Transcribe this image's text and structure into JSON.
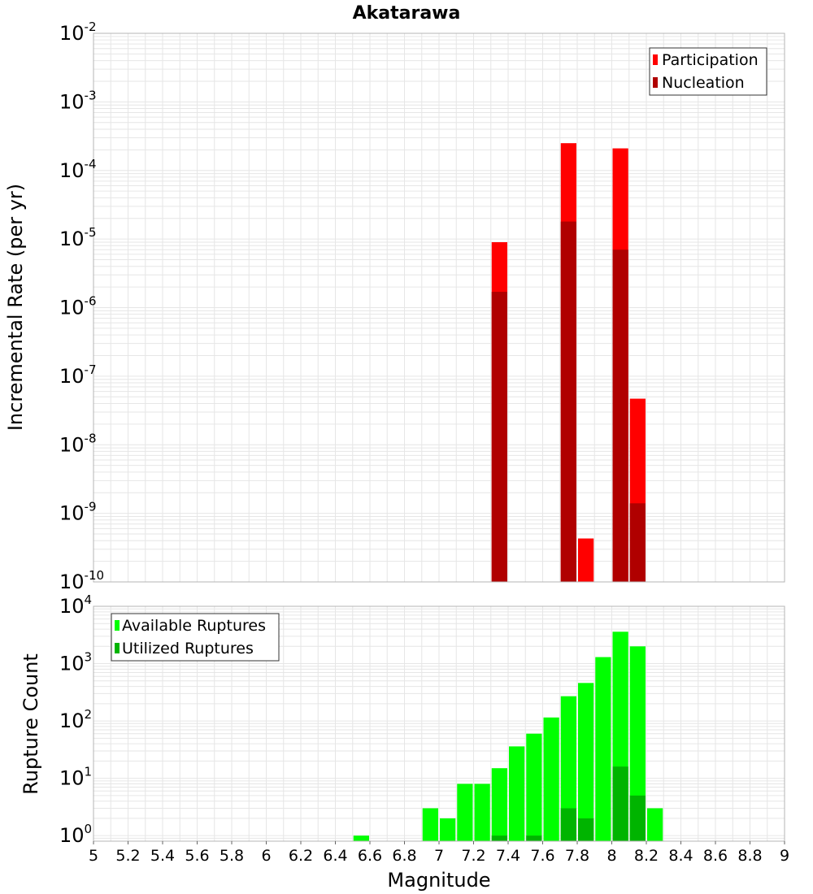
{
  "title": "Akatarawa",
  "colors": {
    "participation": "#ff0000",
    "nucleation": "#b00000",
    "available": "#00ff00",
    "utilized": "#00b400",
    "grid": "#e6e6e6",
    "frame": "#b4b4b4"
  },
  "chart_data": [
    {
      "type": "bar",
      "title": "Akatarawa",
      "xlabel": "Magnitude",
      "ylabel": "Incremental Rate (per yr)",
      "yscale": "log",
      "ylim": [
        1e-10,
        0.01
      ],
      "xlim": [
        5,
        9
      ],
      "bin_width": 0.1,
      "grid": true,
      "legend_position": "top-right",
      "series": [
        {
          "name": "Participation",
          "color": "#ff0000",
          "points": [
            {
              "x": 7.35,
              "y": 9e-06
            },
            {
              "x": 7.75,
              "y": 0.00025
            },
            {
              "x": 7.85,
              "y": 4.3e-10
            },
            {
              "x": 8.05,
              "y": 0.00021
            },
            {
              "x": 8.15,
              "y": 4.7e-08
            }
          ]
        },
        {
          "name": "Nucleation",
          "color": "#b00000",
          "points": [
            {
              "x": 7.35,
              "y": 1.7e-06
            },
            {
              "x": 7.75,
              "y": 1.8e-05
            },
            {
              "x": 8.05,
              "y": 7e-06
            },
            {
              "x": 8.15,
              "y": 1.4e-09
            }
          ]
        }
      ]
    },
    {
      "type": "bar",
      "xlabel": "Magnitude",
      "ylabel": "Rupture Count",
      "yscale": "log",
      "ylim": [
        0.8,
        10000
      ],
      "xlim": [
        5,
        9
      ],
      "bin_width": 0.1,
      "grid": true,
      "legend_position": "top-left",
      "series": [
        {
          "name": "Available Ruptures",
          "color": "#00ff00",
          "points": [
            {
              "x": 6.55,
              "y": 1
            },
            {
              "x": 6.95,
              "y": 3
            },
            {
              "x": 7.05,
              "y": 2
            },
            {
              "x": 7.15,
              "y": 8
            },
            {
              "x": 7.25,
              "y": 8
            },
            {
              "x": 7.35,
              "y": 15
            },
            {
              "x": 7.45,
              "y": 36
            },
            {
              "x": 7.55,
              "y": 60
            },
            {
              "x": 7.65,
              "y": 115
            },
            {
              "x": 7.75,
              "y": 270
            },
            {
              "x": 7.85,
              "y": 460
            },
            {
              "x": 7.95,
              "y": 1300
            },
            {
              "x": 8.05,
              "y": 3600
            },
            {
              "x": 8.15,
              "y": 2000
            },
            {
              "x": 8.25,
              "y": 3
            }
          ]
        },
        {
          "name": "Utilized Ruptures",
          "color": "#00b400",
          "points": [
            {
              "x": 7.35,
              "y": 1
            },
            {
              "x": 7.55,
              "y": 1
            },
            {
              "x": 7.75,
              "y": 3
            },
            {
              "x": 7.85,
              "y": 2
            },
            {
              "x": 8.05,
              "y": 16
            },
            {
              "x": 8.15,
              "y": 5
            }
          ]
        }
      ]
    }
  ],
  "x_ticks": [
    "5",
    "5.2",
    "5.4",
    "5.6",
    "5.8",
    "6",
    "6.2",
    "6.4",
    "6.6",
    "6.8",
    "7",
    "7.2",
    "7.4",
    "7.6",
    "7.8",
    "8",
    "8.2",
    "8.4",
    "8.6",
    "8.8",
    "9"
  ],
  "top_y_ticks": [
    {
      "base": "10",
      "exp": "-2"
    },
    {
      "base": "10",
      "exp": "-3"
    },
    {
      "base": "10",
      "exp": "-4"
    },
    {
      "base": "10",
      "exp": "-5"
    },
    {
      "base": "10",
      "exp": "-6"
    },
    {
      "base": "10",
      "exp": "-7"
    },
    {
      "base": "10",
      "exp": "-8"
    },
    {
      "base": "10",
      "exp": "-9"
    },
    {
      "base": "10",
      "exp": "-10"
    }
  ],
  "bottom_y_ticks": [
    {
      "base": "10",
      "exp": "4"
    },
    {
      "base": "10",
      "exp": "3"
    },
    {
      "base": "10",
      "exp": "2"
    },
    {
      "base": "10",
      "exp": "1"
    },
    {
      "base": "10",
      "exp": "0"
    }
  ]
}
